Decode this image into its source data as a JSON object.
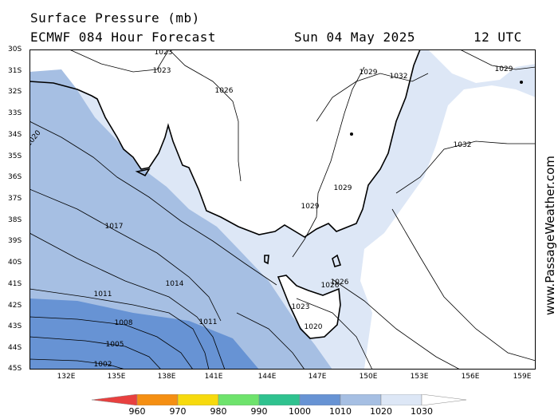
{
  "header": {
    "title": "Surface Pressure (mb)",
    "subtitle": "ECMWF 084 Hour Forecast",
    "date": "Sun 04 May 2025",
    "time": "12 UTC"
  },
  "watermark": "www.PassageWeather.com",
  "lat_labels": [
    "30S",
    "31S",
    "32S",
    "33S",
    "34S",
    "35S",
    "36S",
    "37S",
    "38S",
    "39S",
    "40S",
    "41S",
    "42S",
    "43S",
    "44S",
    "45S"
  ],
  "lon_labels": [
    "132E",
    "135E",
    "138E",
    "141E",
    "144E",
    "147E",
    "150E",
    "153E",
    "156E",
    "159E"
  ],
  "isobar_labels": [
    "1023",
    "1023",
    "1026",
    "1029",
    "1032",
    "1029",
    "1032",
    "1020",
    "1029",
    "1029",
    "1017",
    "1014",
    "1011",
    "1011",
    "1008",
    "1005",
    "1002",
    "1026",
    "1026",
    "1023",
    "1020"
  ],
  "legend": {
    "labels": [
      "960",
      "970",
      "980",
      "990",
      "1000",
      "1010",
      "1020",
      "1030"
    ],
    "colors": [
      "#e8403f",
      "#f58f12",
      "#f7da0d",
      "#6ee36c",
      "#2fc28f",
      "#6793d4",
      "#a6bfe3",
      "#dde7f6"
    ]
  },
  "colors": {
    "land": "#ffffff",
    "band_1020_1030": "#dde7f6",
    "band_1010_1020": "#a6bfe3",
    "band_1000_1010": "#6793d4"
  }
}
